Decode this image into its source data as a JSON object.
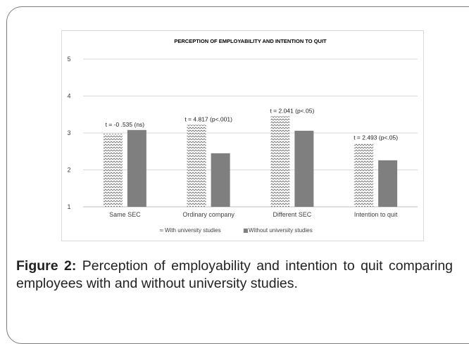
{
  "chart_data": {
    "type": "bar",
    "title": "PERCEPTION OF EMPLOYABILITY AND INTENTION TO QUIT",
    "categories": [
      "Same SEC",
      "Ordinary company",
      "Different SEC",
      "Intention to quit"
    ],
    "series": [
      {
        "name": "With university studies",
        "values": [
          2.98,
          3.22,
          3.45,
          2.72
        ],
        "color": "#c8c8c8",
        "pattern": "zigzag"
      },
      {
        "name": "Without university studies",
        "values": [
          3.08,
          2.45,
          3.06,
          2.26
        ],
        "color": "#7f7f7f",
        "pattern": "solid"
      }
    ],
    "annotations": [
      "t = -0 .535 (ns)",
      "t = 4.817 (p<.001)",
      "t = 2.041 (p<.05)",
      "t = 2.493 (p<.05)"
    ],
    "ylim": [
      1,
      5
    ],
    "yticks": [
      1,
      2,
      3,
      4,
      5
    ],
    "grid": true,
    "legend_position": "bottom",
    "colors": {
      "grid": "#d9d9d9",
      "axis": "#bfbfbf",
      "text": "#404040"
    }
  },
  "caption": {
    "label": "Figure 2:",
    "text": "Perception of employability and intention to quit comparing employees with and without university studies."
  }
}
